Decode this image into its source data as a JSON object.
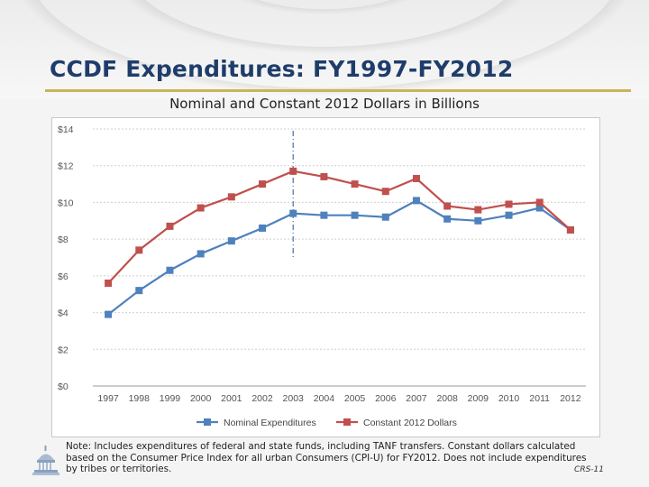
{
  "slide": {
    "title": "CCDF Expenditures: FY1997-FY2012",
    "subtitle": "Nominal and Constant 2012 Dollars in Billions",
    "note": "Note: Includes expenditures of federal and state funds, including TANF transfers. Constant dollars calculated based on the Consumer Price Index for all urban Consumers (CPI-U) for FY2012. Does not include expenditures by tribes or territories.",
    "slide_number": "CRS-11",
    "colors": {
      "title": "#1f3d6b",
      "rule": "#c9b458"
    }
  },
  "chart_data": {
    "type": "line",
    "categories": [
      "1997",
      "1998",
      "1999",
      "2000",
      "2001",
      "2002",
      "2003",
      "2004",
      "2005",
      "2006",
      "2007",
      "2008",
      "2009",
      "2010",
      "2011",
      "2012"
    ],
    "series": [
      {
        "name": "Nominal Expenditures",
        "color": "#4f81bd",
        "values": [
          3.9,
          5.2,
          6.3,
          7.2,
          7.9,
          8.6,
          9.4,
          9.3,
          9.3,
          9.2,
          10.1,
          9.1,
          9.0,
          9.3,
          9.7,
          8.5
        ]
      },
      {
        "name": "Constant 2012 Dollars",
        "color": "#c0504d",
        "values": [
          5.6,
          7.4,
          8.7,
          9.7,
          10.3,
          11.0,
          11.7,
          11.4,
          11.0,
          10.6,
          11.3,
          9.8,
          9.6,
          9.9,
          10.0,
          8.5
        ]
      }
    ],
    "y_ticks": [
      "$0",
      "$2",
      "$4",
      "$6",
      "$8",
      "$10",
      "$12",
      "$14"
    ],
    "ylim": [
      0,
      14
    ],
    "grid": true,
    "legend": "bottom",
    "marker_category": "2003"
  }
}
